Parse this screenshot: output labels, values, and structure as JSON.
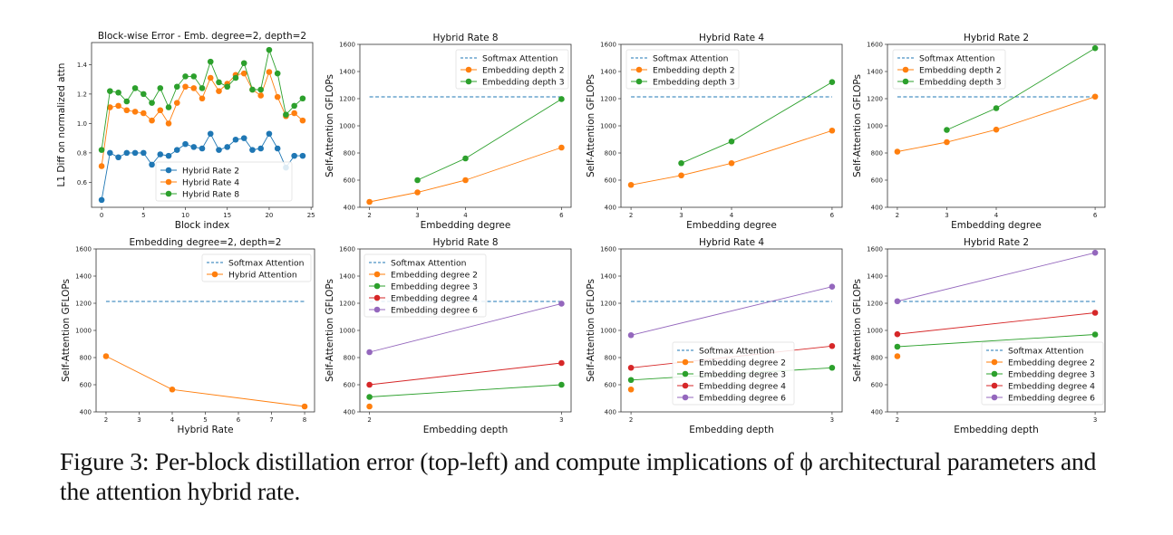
{
  "figure": {
    "caption": "Figure 3: Per-block distillation error (top-left) and compute implications of ϕ architectural parameters and the attention hybrid rate."
  },
  "colors": {
    "blue": "#1f77b4",
    "orange": "#ff7f0e",
    "green": "#2ca02c",
    "red": "#d62728",
    "purple": "#9467bd",
    "softmax_dashed": "#1f77b4"
  },
  "chart_data": [
    {
      "id": "blockwise-error",
      "type": "line",
      "title": "Block-wise Error - Emb. degree=2, depth=2",
      "xlabel": "Block index",
      "ylabel": "L1 Diff on normalized attn",
      "xlim": [
        -1.2,
        25.2
      ],
      "ylim": [
        0.43,
        1.55
      ],
      "xticks": [
        0,
        5,
        10,
        15,
        20,
        25
      ],
      "yticks": [
        0.6,
        0.8,
        1.0,
        1.2,
        1.4
      ],
      "ytick_labels": [
        "0.6",
        "0.8",
        "1.0",
        "1.2",
        "1.4"
      ],
      "legend": "lower-center",
      "x": [
        0,
        1,
        2,
        3,
        4,
        5,
        6,
        7,
        8,
        9,
        10,
        11,
        12,
        13,
        14,
        15,
        16,
        17,
        18,
        19,
        20,
        21,
        22,
        23,
        24
      ],
      "series": [
        {
          "name": "Hybrid Rate 2",
          "color": "#1f77b4",
          "marker": "o",
          "values": [
            0.48,
            0.8,
            0.77,
            0.8,
            0.8,
            0.8,
            0.72,
            0.79,
            0.78,
            0.82,
            0.86,
            0.84,
            0.83,
            0.93,
            0.82,
            0.84,
            0.89,
            0.9,
            0.82,
            0.83,
            0.93,
            0.83,
            0.7,
            0.78,
            0.78
          ]
        },
        {
          "name": "Hybrid Rate 4",
          "color": "#ff7f0e",
          "marker": "o",
          "values": [
            0.71,
            1.11,
            1.12,
            1.09,
            1.08,
            1.07,
            1.02,
            1.09,
            1.0,
            1.14,
            1.25,
            1.24,
            1.17,
            1.31,
            1.22,
            1.27,
            1.33,
            1.34,
            1.23,
            1.19,
            1.35,
            1.18,
            1.05,
            1.07,
            1.02
          ]
        },
        {
          "name": "Hybrid Rate 8",
          "color": "#2ca02c",
          "marker": "o",
          "values": [
            0.82,
            1.22,
            1.21,
            1.15,
            1.24,
            1.2,
            1.14,
            1.24,
            1.11,
            1.25,
            1.32,
            1.32,
            1.24,
            1.42,
            1.28,
            1.25,
            1.31,
            1.41,
            1.23,
            1.23,
            1.5,
            1.34,
            1.06,
            1.12,
            1.17
          ]
        }
      ]
    },
    {
      "id": "rate8-degree",
      "type": "line",
      "title": "Hybrid Rate 8",
      "xlabel": "Embedding degree",
      "ylabel": "Self-Attention GFLOPs",
      "xlim": [
        1.8,
        6.2
      ],
      "ylim": [
        400,
        1600
      ],
      "xticks": [
        2,
        3,
        4,
        6
      ],
      "yticks": [
        400,
        600,
        800,
        1000,
        1200,
        1400,
        1600
      ],
      "legend": "upper-right",
      "series": [
        {
          "name": "Softmax Attention",
          "color": "#1f77b4",
          "style": "dashed",
          "x": [
            2,
            6
          ],
          "values": [
            1213,
            1213
          ]
        },
        {
          "name": "Embedding depth 2",
          "color": "#ff7f0e",
          "marker": "o",
          "x": [
            2,
            3,
            4,
            6
          ],
          "values": [
            440,
            510,
            600,
            840
          ]
        },
        {
          "name": "Embedding depth 3",
          "color": "#2ca02c",
          "marker": "o",
          "x": [
            3,
            4,
            6
          ],
          "values": [
            600,
            760,
            1197
          ]
        }
      ]
    },
    {
      "id": "rate4-degree",
      "type": "line",
      "title": "Hybrid Rate 4",
      "xlabel": "Embedding degree",
      "ylabel": "Self-Attention GFLOPs",
      "xlim": [
        1.8,
        6.2
      ],
      "ylim": [
        400,
        1600
      ],
      "xticks": [
        2,
        3,
        4,
        6
      ],
      "yticks": [
        400,
        600,
        800,
        1000,
        1200,
        1400,
        1600
      ],
      "legend": "upper-left",
      "series": [
        {
          "name": "Softmax Attention",
          "color": "#1f77b4",
          "style": "dashed",
          "x": [
            2,
            6
          ],
          "values": [
            1213,
            1213
          ]
        },
        {
          "name": "Embedding depth 2",
          "color": "#ff7f0e",
          "marker": "o",
          "x": [
            2,
            3,
            4,
            6
          ],
          "values": [
            565,
            635,
            725,
            965
          ]
        },
        {
          "name": "Embedding depth 3",
          "color": "#2ca02c",
          "marker": "o",
          "x": [
            3,
            4,
            6
          ],
          "values": [
            725,
            885,
            1322
          ]
        }
      ]
    },
    {
      "id": "rate2-degree",
      "type": "line",
      "title": "Hybrid Rate 2",
      "xlabel": "Embedding degree",
      "ylabel": "Self-Attention GFLOPs",
      "xlim": [
        1.8,
        6.2
      ],
      "ylim": [
        400,
        1600
      ],
      "xticks": [
        2,
        3,
        4,
        6
      ],
      "yticks": [
        400,
        600,
        800,
        1000,
        1200,
        1400,
        1600
      ],
      "legend": "upper-left",
      "series": [
        {
          "name": "Softmax Attention",
          "color": "#1f77b4",
          "style": "dashed",
          "x": [
            2,
            6
          ],
          "values": [
            1213,
            1213
          ]
        },
        {
          "name": "Embedding depth 2",
          "color": "#ff7f0e",
          "marker": "o",
          "x": [
            2,
            3,
            4,
            6
          ],
          "values": [
            810,
            880,
            972,
            1215
          ]
        },
        {
          "name": "Embedding depth 3",
          "color": "#2ca02c",
          "marker": "o",
          "x": [
            3,
            4,
            6
          ],
          "values": [
            970,
            1130,
            1572
          ]
        }
      ]
    },
    {
      "id": "hybrid-rate",
      "type": "line",
      "title": "Embedding degree=2, depth=2",
      "xlabel": "Hybrid Rate",
      "ylabel": "Self-Attention GFLOPs",
      "xlim": [
        1.7,
        8.3
      ],
      "ylim": [
        400,
        1600
      ],
      "xticks": [
        2,
        3,
        4,
        5,
        6,
        7,
        8
      ],
      "yticks": [
        400,
        600,
        800,
        1000,
        1200,
        1400,
        1600
      ],
      "legend": "upper-right",
      "series": [
        {
          "name": "Softmax Attention",
          "color": "#1f77b4",
          "style": "dashed",
          "x": [
            2,
            8
          ],
          "values": [
            1213,
            1213
          ]
        },
        {
          "name": "Hybrid Attention",
          "color": "#ff7f0e",
          "marker": "o",
          "x": [
            2,
            4,
            8
          ],
          "values": [
            810,
            565,
            440
          ]
        }
      ]
    },
    {
      "id": "rate8-depth",
      "type": "line",
      "title": "Hybrid Rate 8",
      "xlabel": "Embedding depth",
      "ylabel": "Self-Attention GFLOPs",
      "xlim": [
        1.95,
        3.05
      ],
      "ylim": [
        400,
        1600
      ],
      "xticks": [
        2,
        3
      ],
      "yticks": [
        400,
        600,
        800,
        1000,
        1200,
        1400,
        1600
      ],
      "legend": "upper-left",
      "series": [
        {
          "name": "Softmax Attention",
          "color": "#1f77b4",
          "style": "dashed",
          "x": [
            2,
            3
          ],
          "values": [
            1213,
            1213
          ]
        },
        {
          "name": "Embedding degree 2",
          "color": "#ff7f0e",
          "marker": "o",
          "x": [
            2
          ],
          "values": [
            440
          ]
        },
        {
          "name": "Embedding degree 3",
          "color": "#2ca02c",
          "marker": "o",
          "x": [
            2,
            3
          ],
          "values": [
            510,
            600
          ]
        },
        {
          "name": "Embedding degree 4",
          "color": "#d62728",
          "marker": "o",
          "x": [
            2,
            3
          ],
          "values": [
            600,
            760
          ]
        },
        {
          "name": "Embedding degree 6",
          "color": "#9467bd",
          "marker": "o",
          "x": [
            2,
            3
          ],
          "values": [
            840,
            1197
          ]
        }
      ]
    },
    {
      "id": "rate4-depth",
      "type": "line",
      "title": "Hybrid Rate 4",
      "xlabel": "Embedding depth",
      "ylabel": "Self-Attention GFLOPs",
      "xlim": [
        1.95,
        3.05
      ],
      "ylim": [
        400,
        1600
      ],
      "xticks": [
        2,
        3
      ],
      "yticks": [
        400,
        600,
        800,
        1000,
        1200,
        1400,
        1600
      ],
      "legend": "lower-center",
      "series": [
        {
          "name": "Softmax Attention",
          "color": "#1f77b4",
          "style": "dashed",
          "x": [
            2,
            3
          ],
          "values": [
            1213,
            1213
          ]
        },
        {
          "name": "Embedding degree 2",
          "color": "#ff7f0e",
          "marker": "o",
          "x": [
            2
          ],
          "values": [
            565
          ]
        },
        {
          "name": "Embedding degree 3",
          "color": "#2ca02c",
          "marker": "o",
          "x": [
            2,
            3
          ],
          "values": [
            635,
            725
          ]
        },
        {
          "name": "Embedding degree 4",
          "color": "#d62728",
          "marker": "o",
          "x": [
            2,
            3
          ],
          "values": [
            725,
            885
          ]
        },
        {
          "name": "Embedding degree 6",
          "color": "#9467bd",
          "marker": "o",
          "x": [
            2,
            3
          ],
          "values": [
            965,
            1322
          ]
        }
      ]
    },
    {
      "id": "rate2-depth",
      "type": "line",
      "title": "Hybrid Rate 2",
      "xlabel": "Embedding depth",
      "ylabel": "Self-Attention GFLOPs",
      "xlim": [
        1.95,
        3.05
      ],
      "ylim": [
        400,
        1600
      ],
      "xticks": [
        2,
        3
      ],
      "yticks": [
        400,
        600,
        800,
        1000,
        1200,
        1400,
        1600
      ],
      "legend": "lower-right",
      "series": [
        {
          "name": "Softmax Attention",
          "color": "#1f77b4",
          "style": "dashed",
          "x": [
            2,
            3
          ],
          "values": [
            1213,
            1213
          ]
        },
        {
          "name": "Embedding degree 2",
          "color": "#ff7f0e",
          "marker": "o",
          "x": [
            2
          ],
          "values": [
            810
          ]
        },
        {
          "name": "Embedding degree 3",
          "color": "#2ca02c",
          "marker": "o",
          "x": [
            2,
            3
          ],
          "values": [
            880,
            970
          ]
        },
        {
          "name": "Embedding degree 4",
          "color": "#d62728",
          "marker": "o",
          "x": [
            2,
            3
          ],
          "values": [
            972,
            1130
          ]
        },
        {
          "name": "Embedding degree 6",
          "color": "#9467bd",
          "marker": "o",
          "x": [
            2,
            3
          ],
          "values": [
            1215,
            1572
          ]
        }
      ]
    }
  ]
}
